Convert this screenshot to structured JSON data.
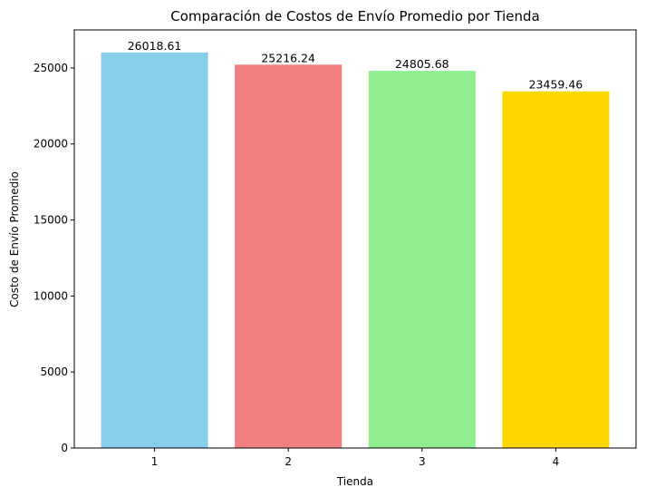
{
  "chart_data": {
    "type": "bar",
    "title": "Comparación de Costos de Envío Promedio por Tienda",
    "xlabel": "Tienda",
    "ylabel": "Costo de Envío Promedio",
    "categories": [
      "1",
      "2",
      "3",
      "4"
    ],
    "values": [
      26018.61,
      25216.24,
      24805.68,
      23459.46
    ],
    "data_labels": [
      "26018.61",
      "25216.24",
      "24805.68",
      "23459.46"
    ],
    "colors": [
      "#87ceeb",
      "#f08080",
      "#90ee90",
      "#ffd700"
    ],
    "ylim": [
      0,
      27500
    ],
    "yticks": [
      0,
      5000,
      10000,
      15000,
      20000,
      25000
    ],
    "ytick_labels": [
      "0",
      "5000",
      "10000",
      "15000",
      "20000",
      "25000"
    ],
    "grid": false,
    "legend": "none"
  }
}
